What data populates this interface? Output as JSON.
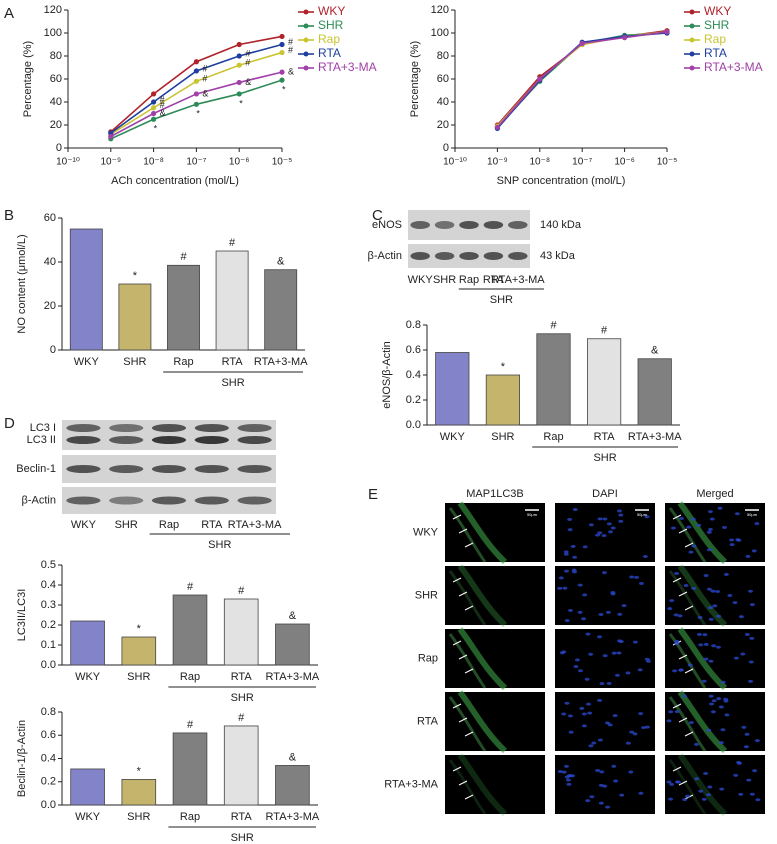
{
  "panel_labels": [
    "A",
    "B",
    "C",
    "D",
    "E"
  ],
  "chart_data": [
    {
      "type": "line",
      "xlabel": "ACh concentration (mol/L)",
      "ylabel": "Percentage (%)",
      "xscale": "log",
      "x": [
        1e-09,
        1e-08,
        1e-07,
        1e-06,
        1e-05
      ],
      "xlim": [
        1e-10,
        1e-05
      ],
      "xticks": [
        {
          "value": 1e-10,
          "label": "10⁻¹⁰"
        },
        {
          "value": 1e-09,
          "label": "10⁻⁹"
        },
        {
          "value": 1e-08,
          "label": "10⁻⁸"
        },
        {
          "value": 1e-07,
          "label": "10⁻⁷"
        },
        {
          "value": 1e-06,
          "label": "10⁻⁶"
        },
        {
          "value": 1e-05,
          "label": "10⁻⁵"
        }
      ],
      "ylim": [
        0,
        120
      ],
      "yticks": [
        0,
        20,
        40,
        60,
        80,
        100,
        120
      ],
      "legend": "right",
      "series": [
        {
          "name": "WKY",
          "color": "#b0222a",
          "values": [
            14,
            47,
            75,
            90,
            97
          ],
          "annotations": [
            null,
            null,
            null,
            null,
            null
          ]
        },
        {
          "name": "SHR",
          "color": "#2e8b57",
          "values": [
            8,
            25,
            38,
            47,
            59
          ],
          "annotations": [
            null,
            "*",
            "*",
            "*",
            "*"
          ]
        },
        {
          "name": "Rap",
          "color": "#c9c431",
          "values": [
            12,
            35,
            58,
            72,
            83
          ],
          "annotations": [
            null,
            "#",
            "#",
            "#",
            "#"
          ]
        },
        {
          "name": "RTA",
          "color": "#1f3f9f",
          "values": [
            13,
            40,
            67,
            80,
            90
          ],
          "annotations": [
            null,
            "#",
            "#",
            "#",
            "#"
          ]
        },
        {
          "name": "RTA+3-MA",
          "color": "#a040a8",
          "values": [
            10,
            30,
            47,
            57,
            66
          ],
          "annotations": [
            null,
            "&",
            "&",
            "&",
            "&"
          ]
        }
      ]
    },
    {
      "type": "line",
      "xlabel": "SNP concentration (mol/L)",
      "ylabel": "Percentage (%)",
      "xscale": "log",
      "x": [
        1e-09,
        1e-08,
        1e-07,
        1e-06,
        1e-05
      ],
      "xlim": [
        1e-10,
        1e-05
      ],
      "xticks": [
        {
          "value": 1e-10,
          "label": "10⁻¹⁰"
        },
        {
          "value": 1e-09,
          "label": "10⁻⁹"
        },
        {
          "value": 1e-08,
          "label": "10⁻⁸"
        },
        {
          "value": 1e-07,
          "label": "10⁻⁷"
        },
        {
          "value": 1e-06,
          "label": "10⁻⁶"
        },
        {
          "value": 1e-05,
          "label": "10⁻⁵"
        }
      ],
      "ylim": [
        0,
        120
      ],
      "yticks": [
        0,
        20,
        40,
        60,
        80,
        100,
        120
      ],
      "legend": "right",
      "series": [
        {
          "name": "WKY",
          "color": "#b0222a",
          "values": [
            20,
            62,
            90,
            97,
            102
          ]
        },
        {
          "name": "SHR",
          "color": "#2e8b57",
          "values": [
            18,
            58,
            91,
            98,
            100
          ]
        },
        {
          "name": "Rap",
          "color": "#c9c431",
          "values": [
            19,
            60,
            90,
            97,
            101
          ]
        },
        {
          "name": "RTA",
          "color": "#1f3f9f",
          "values": [
            17,
            59,
            92,
            97,
            100
          ]
        },
        {
          "name": "RTA+3-MA",
          "color": "#a040a8",
          "values": [
            18,
            60,
            91,
            96,
            101
          ]
        }
      ]
    },
    {
      "type": "bar",
      "ylabel": "NO content (μmol/L)",
      "categories": [
        "WKY",
        "SHR",
        "Rap",
        "RTA",
        "RTA+3-MA"
      ],
      "values": [
        55,
        30,
        38.5,
        45,
        36.5
      ],
      "colors": [
        "#8383c9",
        "#c4b46c",
        "#808080",
        "#e2e2e2",
        "#808080"
      ],
      "annotations": [
        null,
        "*",
        "#",
        "#",
        "&"
      ],
      "group_label": "SHR",
      "ylim": [
        0,
        60
      ],
      "yticks": [
        0,
        20,
        40,
        60
      ]
    },
    {
      "type": "bar",
      "ylabel": "eNOS/β-Actin",
      "categories": [
        "WKY",
        "SHR",
        "Rap",
        "RTA",
        "RTA+3-MA"
      ],
      "values": [
        0.58,
        0.4,
        0.73,
        0.69,
        0.53
      ],
      "colors": [
        "#8383c9",
        "#c4b46c",
        "#808080",
        "#e2e2e2",
        "#808080"
      ],
      "annotations": [
        null,
        "*",
        "#",
        "#",
        "&"
      ],
      "group_label": "SHR",
      "ylim": [
        0,
        0.8
      ],
      "yticks": [
        {
          "value": 0,
          "label": "0.0"
        },
        0.2,
        0.4,
        0.6,
        0.8
      ]
    },
    {
      "type": "bar",
      "ylabel": "LC3II/LC3I",
      "categories": [
        "WKY",
        "SHR",
        "Rap",
        "RTA",
        "RTA+3-MA"
      ],
      "values": [
        0.22,
        0.14,
        0.35,
        0.33,
        0.205
      ],
      "colors": [
        "#8383c9",
        "#c4b46c",
        "#808080",
        "#e2e2e2",
        "#808080"
      ],
      "annotations": [
        null,
        "*",
        "#",
        "#",
        "&"
      ],
      "group_label": "SHR",
      "ylim": [
        0,
        0.5
      ],
      "yticks": [
        {
          "value": 0,
          "label": "0.0"
        },
        0.1,
        0.2,
        0.3,
        0.4,
        0.5
      ]
    },
    {
      "type": "bar",
      "ylabel": "Beclin-1/β-Actin",
      "categories": [
        "WKY",
        "SHR",
        "Rap",
        "RTA",
        "RTA+3-MA"
      ],
      "values": [
        0.31,
        0.22,
        0.62,
        0.68,
        0.34
      ],
      "colors": [
        "#8383c9",
        "#c4b46c",
        "#808080",
        "#e2e2e2",
        "#808080"
      ],
      "annotations": [
        null,
        "*",
        "#",
        "#",
        "&"
      ],
      "group_label": "SHR",
      "ylim": [
        0,
        0.8
      ],
      "yticks": [
        {
          "value": 0,
          "label": "0.0"
        },
        0.2,
        0.4,
        0.6,
        0.8
      ]
    }
  ],
  "blots": [
    {
      "rows": [
        {
          "label": "eNOS",
          "size": "140 kDa"
        },
        {
          "label": "β-Actin",
          "size": "43 kDa"
        }
      ],
      "lanes": [
        "WKY",
        "SHR",
        "Rap",
        "RTA",
        "RTA+3-MA"
      ],
      "group_label": "SHR"
    },
    {
      "rows": [
        {
          "labels": [
            "LC3 I",
            "LC3 II"
          ]
        },
        {
          "label": "Beclin-1"
        },
        {
          "label": "β-Actin"
        }
      ],
      "lanes": [
        "WKY",
        "SHR",
        "Rap",
        "RTA",
        "RTA+3-MA"
      ],
      "group_label": "SHR"
    }
  ],
  "microscopy": {
    "columns": [
      "MAP1LC3B",
      "DAPI",
      "Merged"
    ],
    "rows": [
      "WKY",
      "SHR",
      "Rap",
      "RTA",
      "RTA+3-MA"
    ],
    "scale_bar": "50μm"
  }
}
